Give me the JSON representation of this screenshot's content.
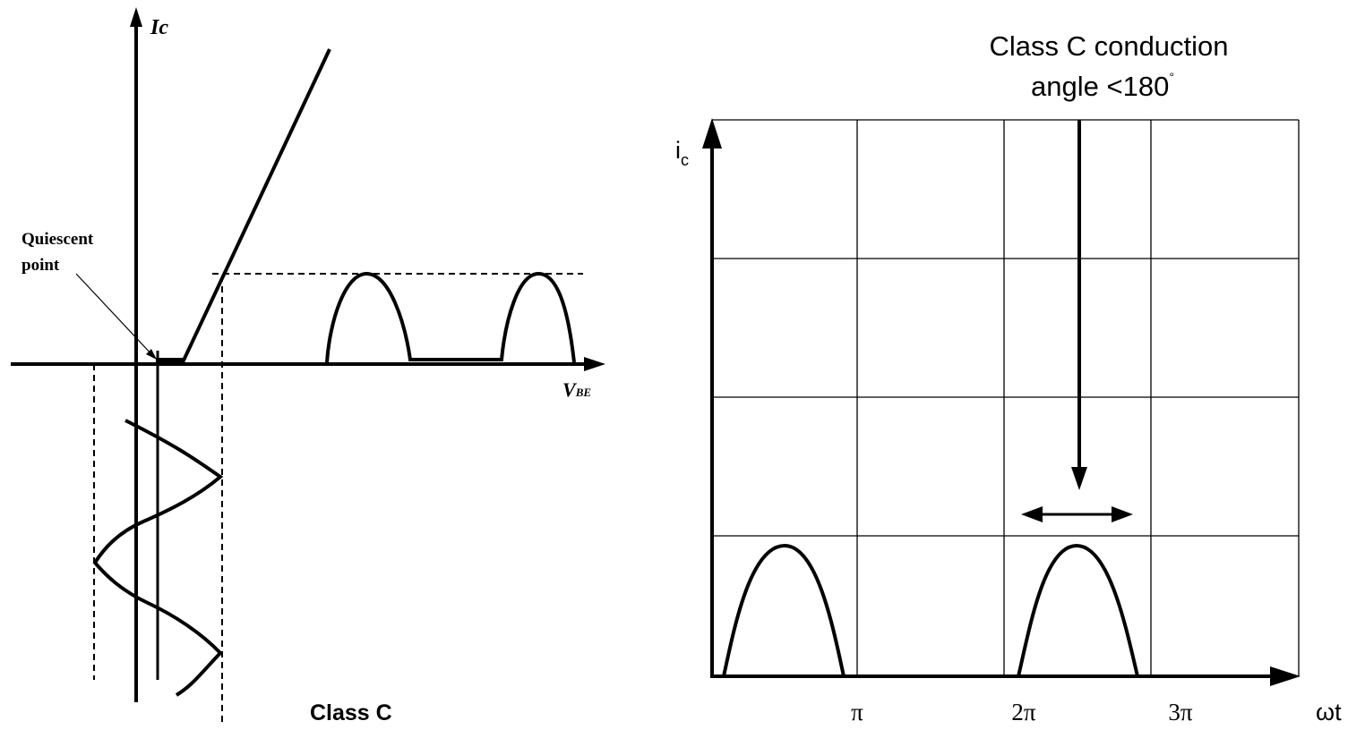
{
  "left_diagram": {
    "y_axis_label": "Ic",
    "x_axis_label_main": "V",
    "x_axis_label_sub": "BE",
    "annotation_line1": "Quiescent",
    "annotation_line2": "point",
    "caption": "Class C"
  },
  "right_diagram": {
    "title_line1": "Class C conduction",
    "title_line2_text": "angle <180",
    "title_line2_degree": "°",
    "y_axis_label_main": "i",
    "y_axis_label_sub": "c",
    "x_axis_label": "ωt",
    "x_ticks": [
      "π",
      "2π",
      "3π"
    ]
  },
  "colors": {
    "ink": "#000000",
    "background": "#ffffff"
  }
}
